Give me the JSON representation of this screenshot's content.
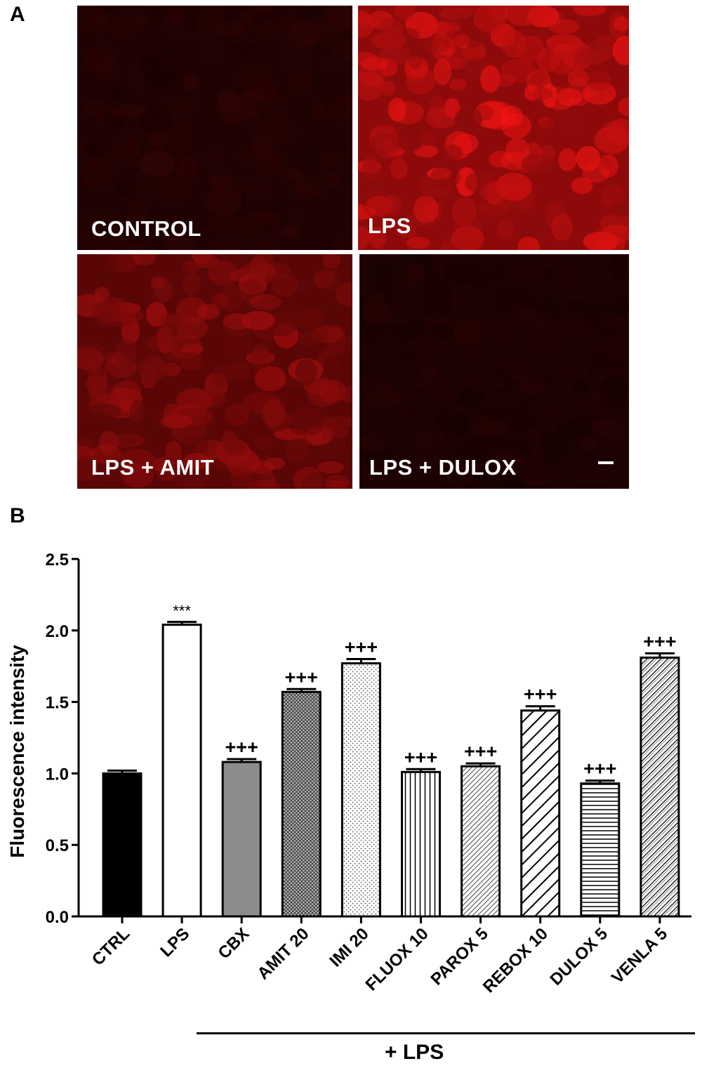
{
  "panel_a": {
    "letter": "A",
    "images": [
      {
        "label": "CONTROL",
        "intensity": 0.18
      },
      {
        "label": "LPS",
        "intensity": 0.95
      },
      {
        "label": "LPS + AMIT",
        "intensity": 0.62
      },
      {
        "label": "LPS + DULOX",
        "intensity": 0.15
      }
    ]
  },
  "panel_b": {
    "letter": "B",
    "group_label": "+ LPS"
  },
  "chart_data": {
    "type": "bar",
    "ylabel": "Fluorescence intensity",
    "ylim": [
      0,
      2.5
    ],
    "yticks": [
      "0.0",
      "0.5",
      "1.0",
      "1.5",
      "2.0",
      "2.5"
    ],
    "categories": [
      "CTRL",
      "LPS",
      "CBX",
      "AMIT 20",
      "IMI 20",
      "FLUOX 10",
      "PAROX 5",
      "REBOX 10",
      "DULOX 5",
      "VENLA 5"
    ],
    "values": [
      1.0,
      2.04,
      1.08,
      1.57,
      1.77,
      1.01,
      1.05,
      1.44,
      0.93,
      1.81
    ],
    "errors": [
      0.02,
      0.02,
      0.02,
      0.02,
      0.03,
      0.02,
      0.02,
      0.03,
      0.02,
      0.03
    ],
    "annotations": [
      "",
      "***",
      "+++",
      "+++",
      "+++",
      "+++",
      "+++",
      "+++",
      "+++",
      "+++"
    ],
    "patterns": [
      "solid-black",
      "white",
      "solid-gray",
      "crosshatch",
      "dots",
      "vertical-lines",
      "diagonal-fine",
      "diagonal-bold",
      "horizontal-lines",
      "diagonal-dense"
    ]
  }
}
